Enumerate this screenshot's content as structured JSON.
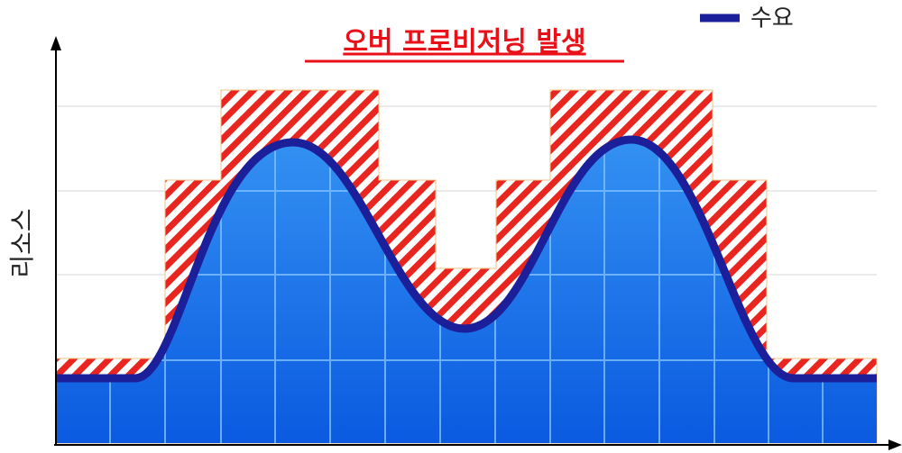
{
  "title": "오버 프로비저닝 발생",
  "legend": {
    "demand": "수요"
  },
  "y_axis_label": "리소스"
}
